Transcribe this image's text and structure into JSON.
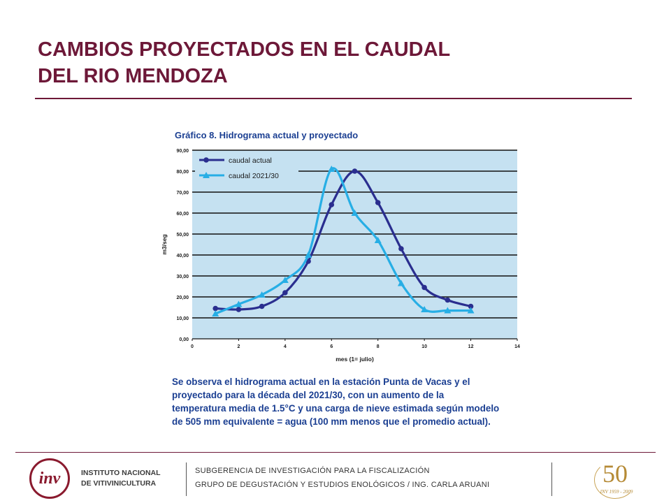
{
  "title": {
    "line1": "CAMBIOS PROYECTADOS EN EL CAUDAL",
    "line2": "DEL RIO MENDOZA"
  },
  "chart_data": {
    "type": "line",
    "title": "Gráfico 8. Hidrograma actual y proyectado",
    "xlabel": "mes (1= julio)",
    "ylabel": "m3/seg",
    "xlim": [
      0,
      14
    ],
    "ylim": [
      0,
      90
    ],
    "xticks": [
      "0",
      "2",
      "4",
      "6",
      "8",
      "10",
      "12",
      "14"
    ],
    "yticks": [
      "0,00",
      "10,00",
      "20,00",
      "30,00",
      "40,00",
      "50,00",
      "60,00",
      "70,00",
      "80,00",
      "90,00"
    ],
    "grid": "horizontal",
    "legend": "top-left",
    "series": [
      {
        "name": "caudal actual",
        "color": "#2a2e8f",
        "marker": "circle",
        "x": [
          1,
          2,
          3,
          4,
          5,
          6,
          7,
          8,
          9,
          10,
          11,
          12
        ],
        "y": [
          14.5,
          14,
          15.5,
          22,
          37,
          64,
          80,
          65,
          43,
          24.5,
          18.5,
          15.5
        ]
      },
      {
        "name": "caudal 2021/30",
        "color": "#27aee5",
        "marker": "triangle",
        "x": [
          1,
          2,
          3,
          4,
          5,
          6,
          7,
          8,
          9,
          10,
          11,
          12
        ],
        "y": [
          12,
          16.5,
          21,
          28,
          40,
          81,
          60,
          47,
          26.5,
          14,
          13.5,
          13.5
        ]
      }
    ]
  },
  "caption": "Se observa el hidrograma actual en la estación Punta de Vacas y el proyectado para la década del 2021/30, con un aumento de la temperatura media de 1.5°C y una carga de nieve estimada según modelo de 505 mm equivalente = agua (100 mm menos que el promedio actual).",
  "footer": {
    "logo_mark": "inv",
    "logo_line1": "INSTITUTO NACIONAL",
    "logo_line2": "DE VITIVINICULTURA",
    "line1": "SUBGERENCIA DE INVESTIGACIÓN PARA LA FISCALIZACIÓN",
    "line2": "GRUPO DE DEGUSTACIÓN Y ESTUDIOS ENOLÓGICOS / ING. CARLA ARUANI",
    "anniv_number": "50",
    "anniv_sub": "INV 1959 - 2009"
  },
  "colors": {
    "accent": "#6d1838",
    "chart_text": "#1b3f92",
    "plot_bg": "#c5e1f1"
  }
}
